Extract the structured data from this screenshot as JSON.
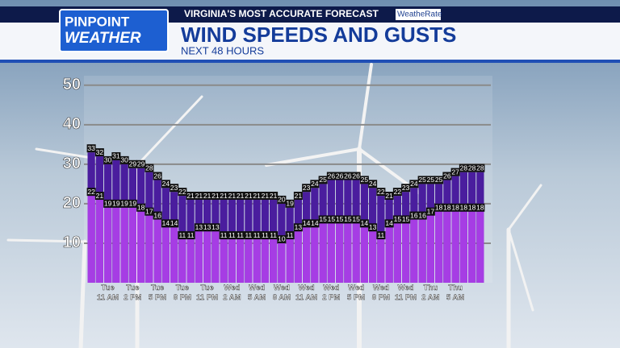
{
  "header": {
    "logo_top": "PINPOINT",
    "logo_bottom": "WEATHER",
    "tagline": "VIRGINIA'S MOST ACCURATE FORECAST",
    "badge": "WeatheRate"
  },
  "chart_data": {
    "type": "bar",
    "title": "WIND SPEEDS AND GUSTS",
    "subtitle": "NEXT 48 HOURS",
    "categories": [
      null,
      null,
      "Tue 11 AM",
      null,
      null,
      "Tue 2 PM",
      null,
      null,
      "Tue 5 PM",
      null,
      null,
      "Tue 8 PM",
      null,
      null,
      "Tue 11 PM",
      null,
      null,
      "Wed 2 AM",
      null,
      null,
      "Wed 5 AM",
      null,
      null,
      "Wed 8 AM",
      null,
      null,
      "Wed 11 AM",
      null,
      null,
      "Wed 2 PM",
      null,
      null,
      "Wed 5 PM",
      null,
      null,
      "Wed 8 PM",
      null,
      null,
      "Wed 11 PM",
      null,
      null,
      "Thu 2 AM",
      null,
      null,
      "Thu 5 AM",
      null,
      null,
      null
    ],
    "series": [
      {
        "color": "#4a1d9e",
        "values": [
          33,
          32,
          30,
          31,
          30,
          29,
          29,
          28,
          26,
          24,
          23,
          22,
          21,
          21,
          21,
          21,
          21,
          21,
          21,
          21,
          21,
          21,
          21,
          20,
          19,
          21,
          23,
          24,
          25,
          26,
          26,
          26,
          26,
          25,
          24,
          22,
          21,
          22,
          23,
          24,
          25,
          25,
          25,
          26,
          27,
          28,
          28,
          28
        ]
      },
      {
        "color": "#a63de4",
        "values": [
          22,
          21,
          19,
          19,
          19,
          19,
          18,
          17,
          16,
          14,
          14,
          11,
          11,
          13,
          13,
          13,
          11,
          11,
          11,
          11,
          11,
          11,
          11,
          10,
          11,
          13,
          14,
          14,
          15,
          15,
          15,
          15,
          15,
          14,
          13,
          11,
          14,
          15,
          15,
          16,
          16,
          17,
          18,
          18,
          18,
          18,
          18,
          18
        ]
      }
    ],
    "ylim": [
      0,
      52
    ],
    "yticks": [
      10,
      20,
      30,
      40,
      50
    ],
    "grid": true
  }
}
